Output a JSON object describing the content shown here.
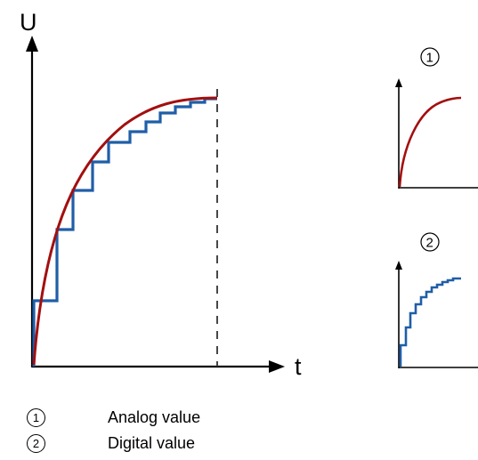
{
  "main_plot": {
    "y_axis_label": "U",
    "x_axis_label": "t"
  },
  "insets": [
    {
      "marker": "1",
      "kind": "analog"
    },
    {
      "marker": "2",
      "kind": "digital"
    }
  ],
  "legend": [
    {
      "marker": "①",
      "label": "Analog value"
    },
    {
      "marker": "②",
      "label": "Digital value"
    }
  ],
  "colors": {
    "analog": "#a30f0f",
    "digital": "#1f5ea8",
    "axis": "#000000",
    "dashed_line": "#333333"
  }
}
